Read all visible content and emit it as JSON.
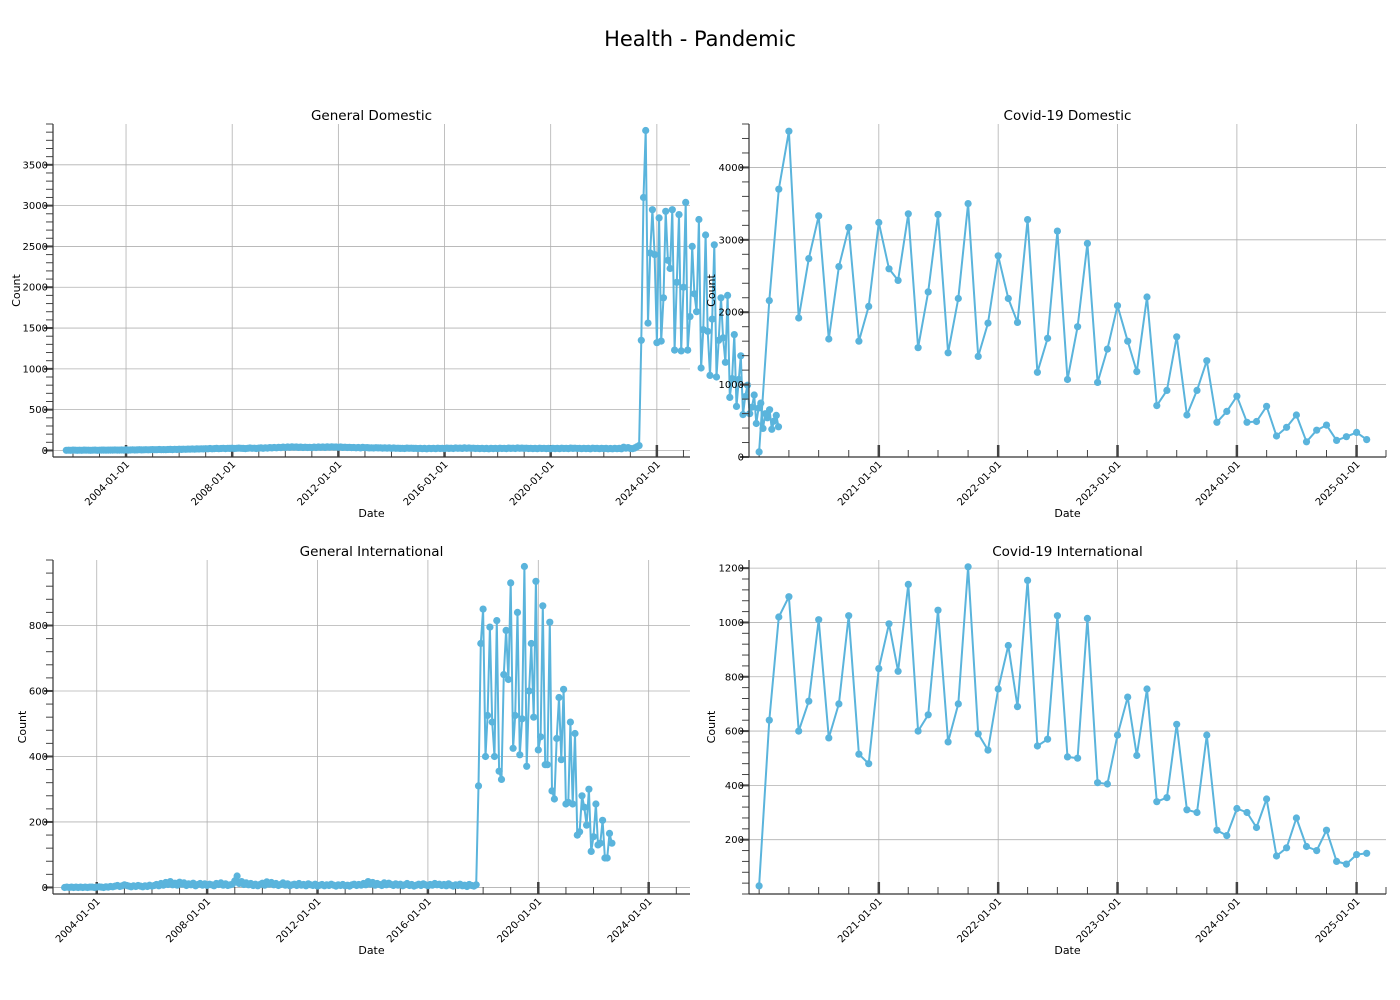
{
  "figure": {
    "title": "Health - Pandemic",
    "line_color": "#5ab4dc"
  },
  "chart_data": [
    {
      "type": "line",
      "title": "General Domestic",
      "xlabel": "Date",
      "ylabel": "Count",
      "x_kind": "date",
      "xlim": [
        "2001-04-01",
        "2025-04-01"
      ],
      "ylim": [
        -80,
        4000
      ],
      "xticks": [
        "2004-01-01",
        "2008-01-01",
        "2012-01-01",
        "2016-01-01",
        "2020-01-01",
        "2024-01-01"
      ],
      "yticks": [
        0,
        500,
        1000,
        1500,
        2000,
        2500,
        3000,
        3500
      ],
      "grid": true,
      "series": [
        {
          "start": "2001-10-01",
          "step_months": 1,
          "values": [
            2,
            3,
            2,
            4,
            3,
            2,
            3,
            2,
            4,
            3,
            3,
            2,
            3,
            4,
            2,
            3,
            5,
            4,
            3,
            4,
            5,
            4,
            6,
            4,
            5,
            6,
            5,
            7,
            5,
            6,
            8,
            6,
            7,
            9,
            7,
            8,
            10,
            8,
            9,
            11,
            9,
            10,
            12,
            10,
            11,
            9,
            12,
            13,
            11,
            14,
            12,
            15,
            13,
            16,
            14,
            17,
            15,
            18,
            16,
            19,
            18,
            20,
            19,
            22,
            20,
            24,
            21,
            23,
            25,
            22,
            24,
            26,
            23,
            27,
            25,
            28,
            24,
            26,
            29,
            27,
            25,
            23,
            27,
            30,
            26,
            28,
            24,
            29,
            31,
            27,
            33,
            29,
            35,
            31,
            37,
            33,
            39,
            35,
            41,
            37,
            43,
            39,
            44,
            40,
            42,
            38,
            41,
            37,
            40,
            36,
            39,
            35,
            41,
            37,
            43,
            39,
            42,
            38,
            44,
            40,
            45,
            41,
            43,
            39,
            42,
            38,
            40,
            36,
            39,
            35,
            37,
            33,
            36,
            32,
            38,
            34,
            35,
            31,
            33,
            30,
            34,
            31,
            33,
            29,
            32,
            28,
            31,
            27,
            30,
            26,
            28,
            25,
            27,
            24,
            29,
            26,
            28,
            25,
            27,
            23,
            26,
            22,
            25,
            21,
            27,
            23,
            26,
            22,
            28,
            24,
            27,
            23,
            29,
            25,
            28,
            24,
            30,
            26,
            29,
            25,
            31,
            27,
            30,
            26,
            28,
            24,
            27,
            23,
            26,
            22,
            25,
            21,
            27,
            23,
            26,
            22,
            28,
            24,
            27,
            23,
            29,
            25,
            28,
            24,
            30,
            26,
            29,
            25,
            28,
            24,
            27,
            23,
            26,
            22,
            28,
            24,
            27,
            23,
            25,
            21,
            27,
            23,
            26,
            22,
            28,
            24,
            27,
            23,
            29,
            25,
            28,
            24,
            26,
            22,
            27,
            23,
            25,
            21,
            28,
            24,
            26,
            22,
            27,
            23,
            25,
            21,
            24,
            20,
            26,
            22,
            25,
            21,
            40,
            28,
            35,
            24,
            22,
            30,
            45,
            60,
            1350,
            3100,
            3920,
            1560,
            2420,
            2950,
            2400,
            1320,
            2850,
            1340,
            1870,
            2930,
            2330,
            2230,
            2950,
            1230,
            2060,
            2890,
            1220,
            2000,
            3040,
            1230,
            1640,
            2500,
            1920,
            1700,
            2830,
            1010,
            1480,
            2640,
            1460,
            920,
            1610,
            2520,
            900,
            1350,
            1870,
            1380,
            1080,
            1900,
            650,
            880,
            1420,
            540,
            870,
            1160,
            440,
            660,
            800,
            450,
            530,
            680,
            330,
            520,
            580,
            270,
            450,
            400,
            500,
            260,
            360,
            430,
            290
          ]
        }
      ]
    },
    {
      "type": "line",
      "title": "Covid-19 Domestic",
      "xlabel": "Date",
      "ylabel": "Count",
      "x_kind": "date",
      "xlim": [
        "2019-12-01",
        "2025-04-01"
      ],
      "ylim": [
        0,
        4600
      ],
      "xticks": [
        "2021-01-01",
        "2022-01-01",
        "2023-01-01",
        "2024-01-01",
        "2025-01-01"
      ],
      "yticks": [
        0,
        1000,
        2000,
        3000,
        4000
      ],
      "grid": true,
      "series": [
        {
          "start": "2020-01-01",
          "step_months": 1,
          "values": [
            70,
            2160,
            3700,
            4500,
            1920,
            2740,
            3330,
            1630,
            2630,
            3170,
            1600,
            2080,
            3240,
            2600,
            2440,
            3360,
            1510,
            2280,
            3350,
            1440,
            2190,
            3500,
            1390,
            1850,
            2780,
            2190,
            1860,
            3280,
            1170,
            1640,
            3120,
            1070,
            1800,
            2950,
            1030,
            1490,
            2090,
            1600,
            1180,
            2210,
            710,
            920,
            1660,
            580,
            920,
            1330,
            480,
            630,
            840,
            480,
            490,
            700,
            290,
            410,
            580,
            210,
            370,
            440,
            230,
            280,
            340,
            240
          ]
        }
      ]
    },
    {
      "type": "line",
      "title": "General International",
      "xlabel": "Date",
      "ylabel": "Count",
      "x_kind": "date",
      "xlim": [
        "2002-06-01",
        "2025-07-01"
      ],
      "ylim": [
        -20,
        1000
      ],
      "xticks": [
        "2004-01-01",
        "2008-01-01",
        "2012-01-01",
        "2016-01-01",
        "2020-01-01",
        "2024-01-01"
      ],
      "yticks": [
        0,
        200,
        400,
        600,
        800
      ],
      "grid": true,
      "series": [
        {
          "start": "2002-11-01",
          "step_months": 1,
          "values": [
            0,
            1,
            0,
            1,
            0,
            1,
            0,
            1,
            0,
            1,
            0,
            1,
            1,
            0,
            1,
            2,
            1,
            0,
            2,
            1,
            3,
            2,
            4,
            6,
            3,
            5,
            8,
            6,
            4,
            2,
            5,
            3,
            6,
            4,
            2,
            5,
            3,
            7,
            4,
            6,
            9,
            5,
            12,
            7,
            15,
            9,
            18,
            8,
            13,
            7,
            16,
            10,
            14,
            6,
            11,
            8,
            13,
            5,
            9,
            12,
            7,
            11,
            6,
            10,
            8,
            5,
            12,
            9,
            14,
            7,
            11,
            6,
            8,
            10,
            20,
            35,
            12,
            18,
            9,
            14,
            8,
            12,
            6,
            10,
            5,
            9,
            13,
            7,
            17,
            10,
            15,
            8,
            12,
            6,
            9,
            14,
            7,
            11,
            5,
            8,
            10,
            6,
            12,
            7,
            9,
            5,
            11,
            8,
            6,
            10,
            4,
            7,
            9,
            5,
            8,
            6,
            10,
            7,
            4,
            8,
            6,
            9,
            5,
            7,
            4,
            8,
            10,
            6,
            9,
            7,
            12,
            8,
            18,
            10,
            15,
            7,
            12,
            9,
            6,
            14,
            8,
            13,
            9,
            6,
            11,
            7,
            10,
            5,
            8,
            12,
            6,
            9,
            4,
            7,
            10,
            6,
            11,
            8,
            5,
            9,
            7,
            12,
            8,
            10,
            6,
            9,
            5,
            11,
            7,
            4,
            8,
            6,
            10,
            5,
            7,
            3,
            9,
            6,
            4,
            8,
            310,
            745,
            850,
            400,
            525,
            795,
            505,
            400,
            815,
            355,
            330,
            650,
            785,
            635,
            930,
            425,
            525,
            840,
            405,
            515,
            980,
            370,
            600,
            745,
            520,
            935,
            420,
            460,
            860,
            375,
            375,
            810,
            295,
            270,
            455,
            580,
            390,
            605,
            255,
            260,
            505,
            255,
            470,
            160,
            170,
            280,
            245,
            190,
            300,
            110,
            155,
            255,
            130,
            135,
            205,
            90,
            90,
            165,
            135
          ]
        }
      ]
    },
    {
      "type": "line",
      "title": "Covid-19 International",
      "xlabel": "Date",
      "ylabel": "Count",
      "x_kind": "date",
      "xlim": [
        "2019-12-01",
        "2025-04-01"
      ],
      "ylim": [
        0,
        1230
      ],
      "xticks": [
        "2021-01-01",
        "2022-01-01",
        "2023-01-01",
        "2024-01-01",
        "2025-01-01"
      ],
      "yticks": [
        200,
        400,
        600,
        800,
        1000,
        1200
      ],
      "grid": true,
      "series": [
        {
          "start": "2020-01-01",
          "step_months": 1,
          "values": [
            30,
            640,
            1020,
            1095,
            600,
            710,
            1010,
            575,
            700,
            1025,
            515,
            480,
            830,
            995,
            820,
            1140,
            600,
            660,
            1045,
            560,
            700,
            1205,
            590,
            530,
            755,
            915,
            690,
            1155,
            545,
            570,
            1025,
            505,
            500,
            1015,
            410,
            405,
            585,
            725,
            510,
            755,
            340,
            355,
            625,
            310,
            300,
            585,
            235,
            215,
            315,
            300,
            245,
            350,
            140,
            170,
            280,
            175,
            160,
            235,
            120,
            110,
            145,
            150
          ]
        }
      ]
    }
  ]
}
